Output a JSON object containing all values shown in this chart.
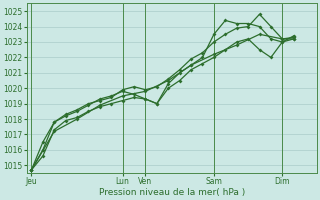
{
  "title": "",
  "xlabel": "Pression niveau de la mer( hPa )",
  "bg_color": "#cce8e4",
  "grid_color": "#aaccca",
  "line_color": "#2d6e2d",
  "spine_color": "#4a8a4a",
  "ylim": [
    1014.5,
    1025.5
  ],
  "xlim": [
    -0.2,
    12.5
  ],
  "yticks": [
    1015,
    1016,
    1017,
    1018,
    1019,
    1020,
    1021,
    1022,
    1023,
    1024,
    1025
  ],
  "xtick_labels": [
    "Jeu",
    "",
    "",
    "",
    "Lun",
    "Ven",
    "",
    "",
    "Sam",
    "",
    "",
    "Dim"
  ],
  "xtick_positions": [
    0,
    1,
    2,
    3,
    4,
    5,
    6,
    7,
    8,
    9,
    10,
    11
  ],
  "vline_positions": [
    0,
    4,
    5,
    8,
    11
  ],
  "line1_x": [
    0,
    0.5,
    1.0,
    1.5,
    2.0,
    2.5,
    3.0,
    3.5,
    4.0,
    4.5,
    5.0,
    5.5,
    6.0,
    6.5,
    7.0,
    7.5,
    8.0,
    8.5,
    9.0,
    9.5,
    10.0,
    10.5,
    11.0,
    11.5
  ],
  "line1_y": [
    1014.7,
    1015.6,
    1017.3,
    1017.9,
    1018.1,
    1018.5,
    1018.8,
    1019.0,
    1019.2,
    1019.4,
    1019.3,
    1019.0,
    1020.0,
    1020.5,
    1021.2,
    1021.6,
    1022.0,
    1022.5,
    1023.0,
    1023.2,
    1022.5,
    1022.0,
    1023.0,
    1023.4
  ],
  "line2_x": [
    0,
    0.5,
    1.0,
    1.5,
    2.0,
    2.5,
    3.0,
    3.5,
    4.0,
    4.5,
    5.0,
    5.5,
    6.0,
    6.5,
    7.0,
    7.5,
    8.0,
    8.5,
    9.0,
    9.5,
    10.0,
    10.5,
    11.0,
    11.5
  ],
  "line2_y": [
    1014.7,
    1016.0,
    1017.8,
    1018.2,
    1018.5,
    1018.9,
    1019.3,
    1019.5,
    1019.8,
    1019.6,
    1019.3,
    1019.0,
    1020.3,
    1021.0,
    1021.5,
    1022.0,
    1023.5,
    1024.4,
    1024.2,
    1024.2,
    1024.0,
    1023.2,
    1023.0,
    1023.2
  ],
  "line3_x": [
    0,
    0.5,
    1.0,
    1.5,
    2.0,
    2.5,
    3.0,
    3.5,
    4.0,
    4.5,
    5.0,
    5.5,
    6.0,
    6.5,
    7.0,
    7.5,
    8.0,
    8.5,
    9.0,
    9.5,
    10.0,
    10.5,
    11.0,
    11.5
  ],
  "line3_y": [
    1014.7,
    1016.5,
    1017.8,
    1018.3,
    1018.6,
    1019.0,
    1019.2,
    1019.4,
    1019.9,
    1020.1,
    1019.9,
    1020.1,
    1020.6,
    1021.2,
    1021.9,
    1022.3,
    1023.0,
    1023.5,
    1023.9,
    1024.0,
    1024.8,
    1024.0,
    1023.2,
    1023.2
  ],
  "line4_x": [
    0,
    1.0,
    2.0,
    3.0,
    4.0,
    5.0,
    6.0,
    7.0,
    8.0,
    9.0,
    10.0,
    11.0,
    11.5
  ],
  "line4_y": [
    1014.7,
    1017.2,
    1018.0,
    1018.9,
    1019.5,
    1019.8,
    1020.5,
    1021.5,
    1022.2,
    1022.8,
    1023.5,
    1023.2,
    1023.3
  ]
}
